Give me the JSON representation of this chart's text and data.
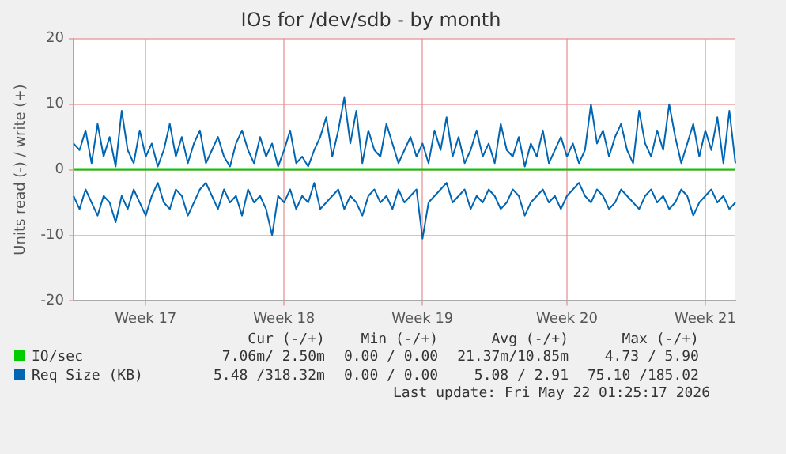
{
  "chart_data": {
    "type": "line",
    "title": "IOs for /dev/sdb - by month",
    "ylabel": "Units read (-) / write (+)",
    "categories": [
      null,
      null,
      null,
      null,
      null,
      null,
      null,
      null,
      null,
      null,
      null,
      null,
      "Week 17",
      null,
      null,
      null,
      null,
      null,
      null,
      null,
      null,
      null,
      null,
      null,
      null,
      null,
      null,
      null,
      null,
      null,
      null,
      null,
      null,
      null,
      null,
      "Week 18",
      null,
      null,
      null,
      null,
      null,
      null,
      null,
      null,
      null,
      null,
      null,
      null,
      null,
      null,
      null,
      null,
      null,
      null,
      null,
      null,
      null,
      null,
      "Week 19",
      null,
      null,
      null,
      null,
      null,
      null,
      null,
      null,
      null,
      null,
      null,
      null,
      null,
      null,
      null,
      null,
      null,
      null,
      null,
      null,
      null,
      null,
      null,
      "Week 20",
      null,
      null,
      null,
      null,
      null,
      null,
      null,
      null,
      null,
      null,
      null,
      null,
      null,
      null,
      null,
      null,
      null,
      null,
      null,
      null,
      null,
      null,
      "Week 21",
      null,
      null,
      null,
      null,
      null
    ],
    "series": [
      {
        "name": "IO/sec",
        "color": "#00cc00",
        "values": [
          0,
          0,
          0,
          0,
          0,
          0,
          0,
          0,
          0,
          0,
          0,
          0,
          0,
          0,
          0,
          0,
          0,
          0,
          0,
          0,
          0,
          0,
          0,
          0,
          0,
          0,
          0,
          0,
          0,
          0,
          0,
          0,
          0,
          0,
          0,
          0,
          0,
          0,
          0,
          0,
          0,
          0,
          0,
          0,
          0,
          0,
          0,
          0,
          0,
          0,
          0,
          0,
          0,
          0,
          0,
          0,
          0,
          0,
          0,
          0,
          0,
          0,
          0,
          0,
          0,
          0,
          0,
          0,
          0,
          0,
          0,
          0,
          0,
          0,
          0,
          0,
          0,
          0,
          0,
          0,
          0,
          0,
          0,
          0,
          0,
          0,
          0,
          0,
          0,
          0,
          0,
          0,
          0,
          0,
          0,
          0,
          0,
          0,
          0,
          0,
          0,
          0,
          0,
          0,
          0,
          0,
          0,
          0,
          0,
          0,
          0
        ]
      },
      {
        "name": "Req Size (KB)",
        "color": "#0066b3",
        "values": [
          4,
          3,
          6,
          1,
          7,
          2,
          5,
          0.5,
          9,
          3,
          1,
          6,
          2,
          4,
          0.5,
          3,
          7,
          2,
          5,
          1,
          4,
          6,
          1,
          3,
          5,
          2,
          0.5,
          4,
          6,
          3,
          1,
          5,
          2,
          4,
          0.5,
          3,
          6,
          1,
          2,
          0.5,
          3,
          5,
          8,
          2,
          6,
          11,
          4,
          9,
          1,
          6,
          3,
          2,
          7,
          4,
          1,
          3,
          5,
          2,
          4,
          1,
          6,
          3,
          8,
          2,
          5,
          1,
          3,
          6,
          2,
          4,
          1,
          7,
          3,
          2,
          5,
          0.5,
          4,
          2,
          6,
          1,
          3,
          5,
          2,
          4,
          1,
          3,
          10,
          4,
          6,
          2,
          5,
          7,
          3,
          1,
          9,
          4,
          2,
          6,
          3,
          10,
          5,
          1,
          4,
          7,
          2,
          6,
          3,
          8,
          1,
          9,
          1
        ]
      },
      {
        "color": "#0066b3",
        "values": [
          -4,
          -6,
          -3,
          -5,
          -7,
          -4,
          -5,
          -8,
          -4,
          -6,
          -3,
          -5,
          -7,
          -4,
          -2,
          -5,
          -6,
          -3,
          -4,
          -7,
          -5,
          -3,
          -2,
          -4,
          -6,
          -3,
          -5,
          -4,
          -7,
          -3,
          -5,
          -4,
          -6,
          -10,
          -4,
          -5,
          -3,
          -6,
          -4,
          -5,
          -2,
          -6,
          -5,
          -4,
          -3,
          -6,
          -4,
          -5,
          -7,
          -4,
          -3,
          -5,
          -4,
          -6,
          -3,
          -5,
          -4,
          -3,
          -10.5,
          -5,
          -4,
          -3,
          -2,
          -5,
          -4,
          -3,
          -6,
          -4,
          -5,
          -3,
          -4,
          -6,
          -5,
          -3,
          -4,
          -7,
          -5,
          -4,
          -3,
          -5,
          -4,
          -6,
          -4,
          -3,
          -2,
          -4,
          -5,
          -3,
          -4,
          -6,
          -5,
          -3,
          -4,
          -5,
          -6,
          -4,
          -3,
          -5,
          -4,
          -6,
          -5,
          -3,
          -4,
          -7,
          -5,
          -4,
          -3,
          -5,
          -4,
          -6,
          -5
        ]
      }
    ],
    "ylim": [
      -20,
      20
    ],
    "yticks": [
      -20,
      -10,
      0,
      10,
      20
    ],
    "grid": true,
    "legend": "bottom",
    "marker": "none",
    "line_style": "solid",
    "annotations": [
      "Cur (-/+)",
      "Min (-/+)",
      "Avg (-/+)",
      "Max (-/+)",
      "7.06m/ 2.50m",
      "0.00 / 0.00",
      "21.37m/10.85m",
      "4.73 / 5.90",
      "5.48 /318.32m",
      "0.00 / 0.00",
      "5.08 / 2.91",
      "75.10 /185.02",
      "Last update: Fri May 22 01:25:17 2026"
    ]
  }
}
